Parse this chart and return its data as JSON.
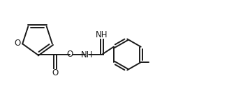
{
  "bg_color": "#ffffff",
  "line_color": "#1a1a1a",
  "line_width": 1.4,
  "font_size": 8.5,
  "font_family": "DejaVu Sans",
  "figsize": [
    3.48,
    1.36
  ],
  "dpi": 100,
  "xlim": [
    0,
    10.5
  ],
  "ylim": [
    0.2,
    4.2
  ]
}
